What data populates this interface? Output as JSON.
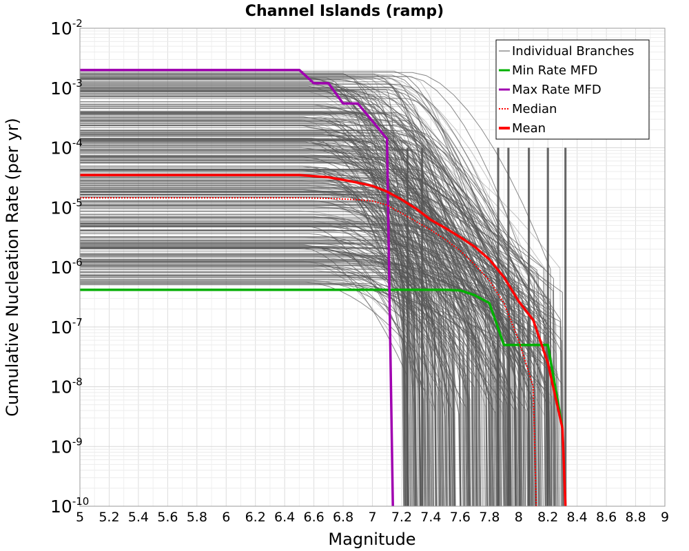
{
  "chart_data": {
    "type": "line",
    "title": "Channel Islands (ramp)",
    "xlabel": "Magnitude",
    "ylabel": "Cumulative Nucleation Rate (per yr)",
    "xlim": [
      5,
      9
    ],
    "ylim": [
      1e-10,
      0.01
    ],
    "yscale": "log",
    "grid": true,
    "legend_position": "top-right",
    "x_ticks": [
      "5",
      "5.2",
      "5.4",
      "5.6",
      "5.8",
      "6",
      "6.2",
      "6.4",
      "6.6",
      "6.8",
      "7",
      "7.2",
      "7.4",
      "7.6",
      "7.8",
      "8",
      "8.2",
      "8.4",
      "8.6",
      "8.8",
      "9"
    ],
    "y_ticks": [
      {
        "base": "10",
        "exp": "-10",
        "value": 1e-10
      },
      {
        "base": "10",
        "exp": "-9",
        "value": 1e-09
      },
      {
        "base": "10",
        "exp": "-8",
        "value": 1e-08
      },
      {
        "base": "10",
        "exp": "-7",
        "value": 1e-07
      },
      {
        "base": "10",
        "exp": "-6",
        "value": 1e-06
      },
      {
        "base": "10",
        "exp": "-5",
        "value": 1e-05
      },
      {
        "base": "10",
        "exp": "-4",
        "value": 0.0001
      },
      {
        "base": "10",
        "exp": "-3",
        "value": 0.001
      },
      {
        "base": "10",
        "exp": "-2",
        "value": 0.01
      }
    ],
    "series": [
      {
        "name": "Min Rate MFD",
        "color": "#00b000",
        "dash": "solid",
        "x": [
          5.0,
          7.5,
          7.6,
          7.7,
          7.8,
          7.9,
          8.0,
          8.1,
          8.2,
          8.3
        ],
        "y": [
          4.2e-07,
          4.2e-07,
          4.1e-07,
          3.4e-07,
          2.5e-07,
          5e-08,
          5e-08,
          5e-08,
          5e-08,
          2e-09
        ]
      },
      {
        "name": "Max Rate MFD",
        "color": "#a000b0",
        "dash": "solid",
        "x": [
          5.0,
          6.5,
          6.6,
          6.7,
          6.8,
          6.9,
          7.0,
          7.1,
          7.14
        ],
        "y": [
          0.002,
          0.002,
          0.0012,
          0.0012,
          0.00055,
          0.00055,
          0.00028,
          0.00014,
          1e-10
        ]
      },
      {
        "name": "Median",
        "color": "#ff0000",
        "dash": "dotted",
        "x": [
          5.0,
          6.5,
          6.7,
          6.9,
          7.0,
          7.1,
          7.2,
          7.3,
          7.4,
          7.5,
          7.6,
          7.7,
          7.8,
          7.9,
          8.0,
          8.1,
          8.12
        ],
        "y": [
          1.45e-05,
          1.45e-05,
          1.42e-05,
          1.35e-05,
          1.28e-05,
          1.1e-05,
          8e-06,
          5.8e-06,
          4.2e-06,
          2.9e-06,
          1.9e-06,
          1.1e-06,
          6e-07,
          2.5e-07,
          6e-08,
          1e-08,
          1e-10
        ]
      },
      {
        "name": "Mean",
        "color": "#ff0000",
        "dash": "solid",
        "x": [
          5.0,
          6.5,
          6.7,
          6.8,
          6.9,
          7.0,
          7.1,
          7.2,
          7.3,
          7.4,
          7.5,
          7.6,
          7.7,
          7.8,
          7.9,
          8.0,
          8.1,
          8.2,
          8.3,
          8.32
        ],
        "y": [
          3.5e-05,
          3.5e-05,
          3.2e-05,
          2.9e-05,
          2.6e-05,
          2.3e-05,
          1.85e-05,
          1.35e-05,
          9.5e-06,
          6.2e-06,
          4.5e-06,
          3.2e-06,
          2.2e-06,
          1.35e-06,
          6.8e-07,
          2.7e-07,
          1.3e-07,
          2.5e-08,
          2e-09,
          1e-10
        ]
      }
    ],
    "individual_branches": {
      "name": "Individual Branches",
      "color": "#555555",
      "description_count": 400
    }
  }
}
